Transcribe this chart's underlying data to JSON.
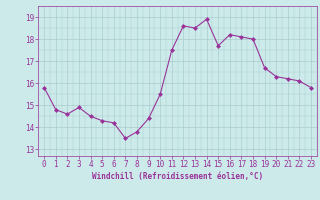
{
  "x": [
    0,
    1,
    2,
    3,
    4,
    5,
    6,
    7,
    8,
    9,
    10,
    11,
    12,
    13,
    14,
    15,
    16,
    17,
    18,
    19,
    20,
    21,
    22,
    23
  ],
  "y": [
    15.8,
    14.8,
    14.6,
    14.9,
    14.5,
    14.3,
    14.2,
    13.5,
    13.8,
    14.4,
    15.5,
    17.5,
    18.6,
    18.5,
    18.9,
    17.7,
    18.2,
    18.1,
    18.0,
    16.7,
    16.3,
    16.2,
    16.1,
    15.8
  ],
  "line_color": "#993399",
  "marker": "D",
  "marker_size": 2,
  "line_width": 0.8,
  "xlabel": "Windchill (Refroidissement éolien,°C)",
  "xlim": [
    -0.5,
    23.5
  ],
  "ylim": [
    12.7,
    19.5
  ],
  "yticks": [
    13,
    14,
    15,
    16,
    17,
    18,
    19
  ],
  "xticks": [
    0,
    1,
    2,
    3,
    4,
    5,
    6,
    7,
    8,
    9,
    10,
    11,
    12,
    13,
    14,
    15,
    16,
    17,
    18,
    19,
    20,
    21,
    22,
    23
  ],
  "bg_color": "#cceaea",
  "grid_color": "#aacccc",
  "font_color": "#993399",
  "tick_fontsize": 5.5,
  "xlabel_fontsize": 5.5
}
